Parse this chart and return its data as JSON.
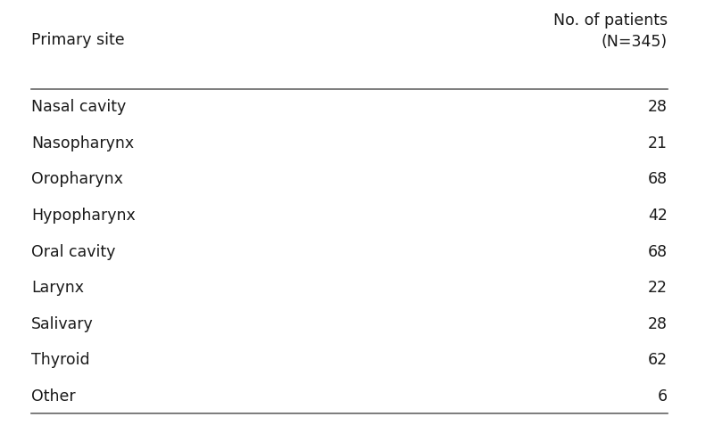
{
  "col1_header": "Primary site",
  "col2_header_line1": "No. of patients",
  "col2_header_line2": "(N=345)",
  "rows": [
    [
      "Nasal cavity",
      "28"
    ],
    [
      "Nasopharynx",
      "21"
    ],
    [
      "Oropharynx",
      "68"
    ],
    [
      "Hypopharynx",
      "42"
    ],
    [
      "Oral cavity",
      "68"
    ],
    [
      "Larynx",
      "22"
    ],
    [
      "Salivary",
      "28"
    ],
    [
      "Thyroid",
      "62"
    ],
    [
      "Other",
      "6"
    ]
  ],
  "background_color": "#ffffff",
  "text_color": "#1a1a1a",
  "line_color": "#666666",
  "header_fontsize": 12.5,
  "row_fontsize": 12.5,
  "fig_width": 8.0,
  "fig_height": 4.86,
  "dpi": 100
}
